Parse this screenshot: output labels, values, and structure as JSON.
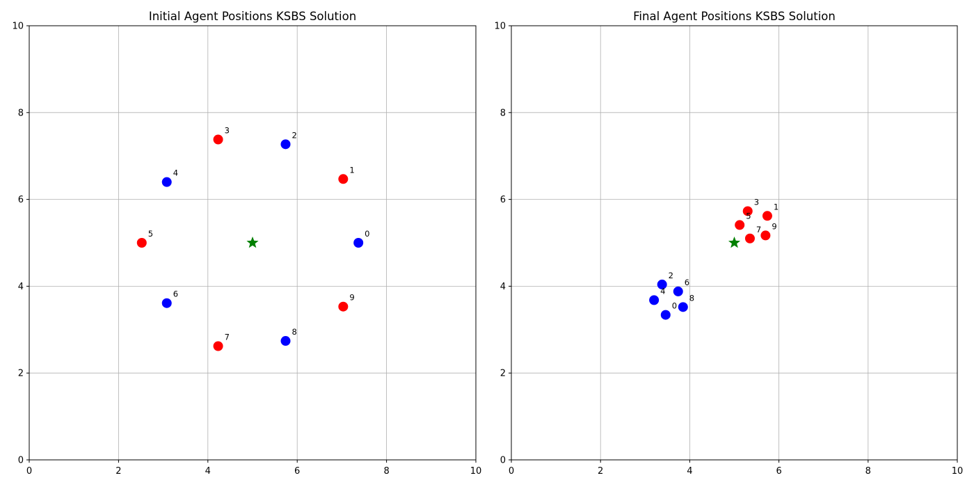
{
  "chart_data": [
    {
      "type": "scatter",
      "title": "Initial Agent Positions KSBS Solution",
      "xlim": [
        0,
        10
      ],
      "ylim": [
        0,
        10
      ],
      "xticks": [
        "0",
        "2",
        "4",
        "6",
        "8",
        "10"
      ],
      "yticks": [
        "0",
        "2",
        "4",
        "6",
        "8",
        "10"
      ],
      "grid": true,
      "goal": {
        "x": 5.0,
        "y": 5.0,
        "marker": "star",
        "color": "#008000"
      },
      "points": [
        {
          "label": "0",
          "x": 7.37,
          "y": 5.0,
          "color": "#0000ff"
        },
        {
          "label": "1",
          "x": 7.03,
          "y": 6.47,
          "color": "#ff0000"
        },
        {
          "label": "2",
          "x": 5.74,
          "y": 7.27,
          "color": "#0000ff"
        },
        {
          "label": "3",
          "x": 4.23,
          "y": 7.38,
          "color": "#ff0000"
        },
        {
          "label": "4",
          "x": 3.08,
          "y": 6.4,
          "color": "#0000ff"
        },
        {
          "label": "5",
          "x": 2.52,
          "y": 5.0,
          "color": "#ff0000"
        },
        {
          "label": "6",
          "x": 3.08,
          "y": 3.61,
          "color": "#0000ff"
        },
        {
          "label": "7",
          "x": 4.23,
          "y": 2.62,
          "color": "#ff0000"
        },
        {
          "label": "8",
          "x": 5.74,
          "y": 2.74,
          "color": "#0000ff"
        },
        {
          "label": "9",
          "x": 7.03,
          "y": 3.53,
          "color": "#ff0000"
        }
      ]
    },
    {
      "type": "scatter",
      "title": "Final Agent Positions KSBS Solution",
      "xlim": [
        0,
        10
      ],
      "ylim": [
        0,
        10
      ],
      "xticks": [
        "0",
        "2",
        "4",
        "6",
        "8",
        "10"
      ],
      "yticks": [
        "0",
        "2",
        "4",
        "6",
        "8",
        "10"
      ],
      "grid": true,
      "goal": {
        "x": 5.0,
        "y": 5.0,
        "marker": "star",
        "color": "#008000"
      },
      "points": [
        {
          "label": "0",
          "x": 3.46,
          "y": 3.34,
          "color": "#0000ff"
        },
        {
          "label": "1",
          "x": 5.74,
          "y": 5.62,
          "color": "#ff0000"
        },
        {
          "label": "2",
          "x": 3.38,
          "y": 4.04,
          "color": "#0000ff"
        },
        {
          "label": "3",
          "x": 5.3,
          "y": 5.73,
          "color": "#ff0000"
        },
        {
          "label": "4",
          "x": 3.2,
          "y": 3.68,
          "color": "#0000ff"
        },
        {
          "label": "5",
          "x": 5.12,
          "y": 5.41,
          "color": "#ff0000"
        },
        {
          "label": "6",
          "x": 3.74,
          "y": 3.88,
          "color": "#0000ff"
        },
        {
          "label": "7",
          "x": 5.35,
          "y": 5.1,
          "color": "#ff0000"
        },
        {
          "label": "8",
          "x": 3.85,
          "y": 3.52,
          "color": "#0000ff"
        },
        {
          "label": "9",
          "x": 5.7,
          "y": 5.17,
          "color": "#ff0000"
        }
      ]
    }
  ]
}
